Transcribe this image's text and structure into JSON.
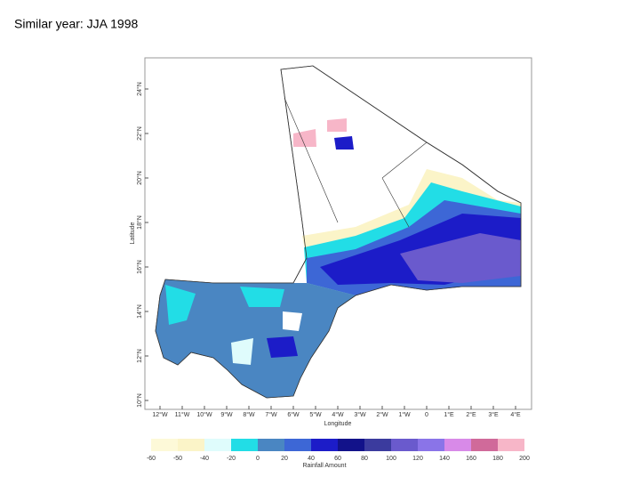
{
  "title": "Similar year: JJA 1998",
  "map": {
    "y_axis_label": "Latitude",
    "x_axis_label": "Longitude",
    "lat_ticks": [
      "24°N",
      "22°N",
      "20°N",
      "18°N",
      "16°N",
      "14°N",
      "12°N",
      "10°N"
    ],
    "lon_ticks": [
      "12°W",
      "11°W",
      "10°W",
      "9°W",
      "8°W",
      "7°W",
      "6°W",
      "5°W",
      "4°W",
      "3°W",
      "2°W",
      "1°W",
      "0",
      "1°E",
      "2°E",
      "3°E",
      "4°E"
    ]
  },
  "colorbar": {
    "label": "Rainfall Amount",
    "ticks": [
      "-60",
      "-50",
      "-40",
      "-20",
      "0",
      "20",
      "40",
      "60",
      "80",
      "100",
      "120",
      "140",
      "160",
      "180",
      "200"
    ],
    "colors": [
      "#fdf9d8",
      "#fbf4c8",
      "#dffcfc",
      "#22dde6",
      "#4a86c2",
      "#3d67d6",
      "#1c1cc8",
      "#12128a",
      "#3b3b9e",
      "#6a5acd",
      "#8a74e8",
      "#d88ae8",
      "#d06a9a",
      "#f7b6c8"
    ]
  }
}
